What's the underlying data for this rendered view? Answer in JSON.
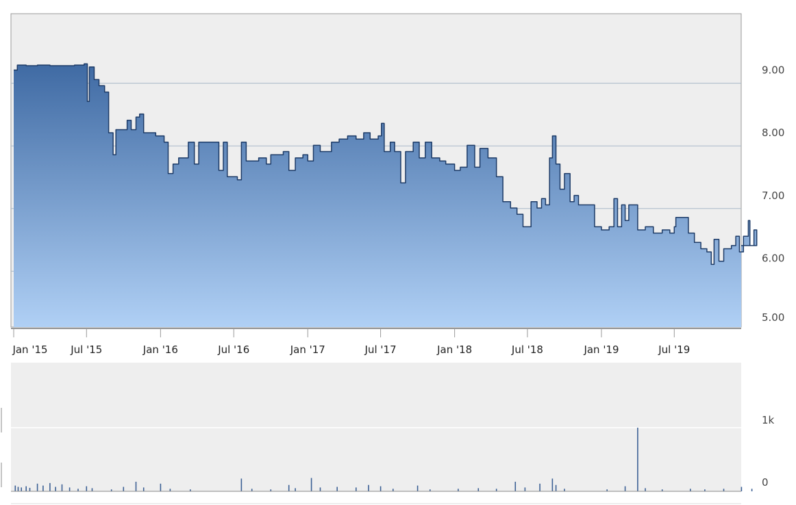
{
  "chart_data": [
    {
      "type": "area",
      "title": "",
      "xlabel": "",
      "ylabel": "",
      "ylim": [
        5.0,
        10.0
      ],
      "y_ticks": [
        "5.00",
        "6.00",
        "7.00",
        "8.00",
        "9.00"
      ],
      "x_ticks": [
        "Jan '15",
        "Jul '15",
        "Jan '16",
        "Jul '16",
        "Jan '17",
        "Jul '17",
        "Jan '18",
        "Jul '18",
        "Jan '19",
        "Jul '19"
      ],
      "grid": true,
      "colors": {
        "line": "#1c3a66",
        "fill_top": "#3f6aa3",
        "fill_bottom": "#b0d0f5",
        "background": "#eeeeee"
      },
      "points": [
        [
          "2015-01-01",
          9.1
        ],
        [
          "2015-01-10",
          9.18
        ],
        [
          "2015-02-01",
          9.17
        ],
        [
          "2015-03-01",
          9.18
        ],
        [
          "2015-04-01",
          9.17
        ],
        [
          "2015-05-01",
          9.17
        ],
        [
          "2015-06-01",
          9.18
        ],
        [
          "2015-06-25",
          9.2
        ],
        [
          "2015-07-03",
          8.6
        ],
        [
          "2015-07-08",
          9.15
        ],
        [
          "2015-07-20",
          8.95
        ],
        [
          "2015-08-01",
          8.85
        ],
        [
          "2015-08-15",
          8.75
        ],
        [
          "2015-08-25",
          8.1
        ],
        [
          "2015-09-05",
          7.75
        ],
        [
          "2015-09-12",
          8.15
        ],
        [
          "2015-10-01",
          8.15
        ],
        [
          "2015-10-10",
          8.3
        ],
        [
          "2015-10-20",
          8.15
        ],
        [
          "2015-11-01",
          8.35
        ],
        [
          "2015-11-10",
          8.4
        ],
        [
          "2015-11-20",
          8.1
        ],
        [
          "2015-12-01",
          8.1
        ],
        [
          "2015-12-20",
          8.05
        ],
        [
          "2016-01-01",
          8.05
        ],
        [
          "2016-01-10",
          7.95
        ],
        [
          "2016-01-20",
          7.45
        ],
        [
          "2016-02-01",
          7.6
        ],
        [
          "2016-02-15",
          7.7
        ],
        [
          "2016-03-01",
          7.7
        ],
        [
          "2016-03-10",
          7.95
        ],
        [
          "2016-03-25",
          7.6
        ],
        [
          "2016-04-05",
          7.95
        ],
        [
          "2016-05-01",
          7.95
        ],
        [
          "2016-05-15",
          7.95
        ],
        [
          "2016-05-25",
          7.5
        ],
        [
          "2016-06-05",
          7.95
        ],
        [
          "2016-06-15",
          7.4
        ],
        [
          "2016-07-01",
          7.4
        ],
        [
          "2016-07-10",
          7.35
        ],
        [
          "2016-07-20",
          7.95
        ],
        [
          "2016-08-01",
          7.65
        ],
        [
          "2016-09-01",
          7.7
        ],
        [
          "2016-09-20",
          7.6
        ],
        [
          "2016-10-01",
          7.75
        ],
        [
          "2016-11-01",
          7.8
        ],
        [
          "2016-11-15",
          7.5
        ],
        [
          "2016-12-01",
          7.7
        ],
        [
          "2016-12-20",
          7.75
        ],
        [
          "2017-01-01",
          7.65
        ],
        [
          "2017-01-15",
          7.9
        ],
        [
          "2017-02-01",
          7.8
        ],
        [
          "2017-03-01",
          7.95
        ],
        [
          "2017-03-20",
          8.0
        ],
        [
          "2017-04-10",
          8.05
        ],
        [
          "2017-05-01",
          8.0
        ],
        [
          "2017-05-20",
          8.1
        ],
        [
          "2017-06-05",
          8.0
        ],
        [
          "2017-06-25",
          8.05
        ],
        [
          "2017-07-03",
          8.25
        ],
        [
          "2017-07-10",
          7.8
        ],
        [
          "2017-07-25",
          7.95
        ],
        [
          "2017-08-05",
          7.8
        ],
        [
          "2017-08-20",
          7.3
        ],
        [
          "2017-09-01",
          7.8
        ],
        [
          "2017-09-20",
          7.95
        ],
        [
          "2017-10-05",
          7.7
        ],
        [
          "2017-10-20",
          7.95
        ],
        [
          "2017-11-05",
          7.7
        ],
        [
          "2017-11-25",
          7.65
        ],
        [
          "2017-12-10",
          7.6
        ],
        [
          "2018-01-01",
          7.5
        ],
        [
          "2018-01-15",
          7.55
        ],
        [
          "2018-02-01",
          7.9
        ],
        [
          "2018-02-20",
          7.55
        ],
        [
          "2018-03-05",
          7.85
        ],
        [
          "2018-03-25",
          7.7
        ],
        [
          "2018-04-15",
          7.4
        ],
        [
          "2018-05-01",
          7.0
        ],
        [
          "2018-05-20",
          6.9
        ],
        [
          "2018-06-05",
          6.8
        ],
        [
          "2018-06-20",
          6.6
        ],
        [
          "2018-07-01",
          6.6
        ],
        [
          "2018-07-10",
          7.0
        ],
        [
          "2018-07-25",
          6.9
        ],
        [
          "2018-08-05",
          7.05
        ],
        [
          "2018-08-15",
          6.95
        ],
        [
          "2018-08-25",
          7.7
        ],
        [
          "2018-09-01",
          8.05
        ],
        [
          "2018-09-10",
          7.6
        ],
        [
          "2018-09-20",
          7.2
        ],
        [
          "2018-10-01",
          7.45
        ],
        [
          "2018-10-15",
          7.0
        ],
        [
          "2018-10-25",
          7.1
        ],
        [
          "2018-11-05",
          6.95
        ],
        [
          "2018-12-01",
          6.95
        ],
        [
          "2018-12-15",
          6.6
        ],
        [
          "2019-01-01",
          6.55
        ],
        [
          "2019-01-20",
          6.6
        ],
        [
          "2019-02-01",
          7.05
        ],
        [
          "2019-02-10",
          6.6
        ],
        [
          "2019-02-20",
          6.95
        ],
        [
          "2019-03-01",
          6.7
        ],
        [
          "2019-03-10",
          6.95
        ],
        [
          "2019-03-20",
          6.95
        ],
        [
          "2019-04-01",
          6.55
        ],
        [
          "2019-04-20",
          6.6
        ],
        [
          "2019-05-10",
          6.5
        ],
        [
          "2019-06-01",
          6.55
        ],
        [
          "2019-06-20",
          6.5
        ],
        [
          "2019-07-01",
          6.6
        ],
        [
          "2019-07-05",
          6.75
        ],
        [
          "2019-07-25",
          6.75
        ],
        [
          "2019-08-05",
          6.5
        ],
        [
          "2019-08-20",
          6.35
        ],
        [
          "2019-09-05",
          6.25
        ],
        [
          "2019-09-20",
          6.2
        ],
        [
          "2019-10-01",
          6.0
        ],
        [
          "2019-10-08",
          6.4
        ],
        [
          "2019-10-20",
          6.05
        ],
        [
          "2019-11-01",
          6.25
        ],
        [
          "2019-11-20",
          6.3
        ],
        [
          "2019-12-01",
          6.45
        ],
        [
          "2019-12-10",
          6.2
        ],
        [
          "2019-12-20",
          6.45
        ],
        [
          "2020-01-01",
          6.7
        ],
        [
          "2020-01-05",
          6.3
        ],
        [
          "2020-01-15",
          6.55
        ],
        [
          "2020-01-22",
          6.3
        ]
      ]
    },
    {
      "type": "bar",
      "title": "",
      "xlabel": "",
      "ylabel": "",
      "ylim": [
        0,
        2000
      ],
      "y_ticks": [
        "0",
        "1k"
      ],
      "grid": true,
      "colors": {
        "bar": "#3a5f94"
      },
      "volumes": [
        [
          "2015-01-05",
          90
        ],
        [
          "2015-01-12",
          70
        ],
        [
          "2015-01-20",
          60
        ],
        [
          "2015-02-01",
          80
        ],
        [
          "2015-02-10",
          55
        ],
        [
          "2015-03-01",
          120
        ],
        [
          "2015-03-15",
          90
        ],
        [
          "2015-04-01",
          130
        ],
        [
          "2015-04-15",
          70
        ],
        [
          "2015-05-01",
          110
        ],
        [
          "2015-05-20",
          60
        ],
        [
          "2015-06-10",
          40
        ],
        [
          "2015-07-01",
          80
        ],
        [
          "2015-07-15",
          50
        ],
        [
          "2015-09-01",
          30
        ],
        [
          "2015-10-01",
          70
        ],
        [
          "2015-11-01",
          150
        ],
        [
          "2015-11-20",
          60
        ],
        [
          "2016-01-01",
          120
        ],
        [
          "2016-01-25",
          40
        ],
        [
          "2016-03-15",
          30
        ],
        [
          "2016-07-20",
          200
        ],
        [
          "2016-08-15",
          40
        ],
        [
          "2016-10-01",
          30
        ],
        [
          "2016-11-15",
          100
        ],
        [
          "2016-12-01",
          50
        ],
        [
          "2017-01-10",
          210
        ],
        [
          "2017-02-01",
          60
        ],
        [
          "2017-03-15",
          70
        ],
        [
          "2017-05-01",
          60
        ],
        [
          "2017-06-01",
          100
        ],
        [
          "2017-07-01",
          80
        ],
        [
          "2017-08-01",
          40
        ],
        [
          "2017-10-01",
          90
        ],
        [
          "2017-11-01",
          30
        ],
        [
          "2018-01-10",
          40
        ],
        [
          "2018-03-01",
          50
        ],
        [
          "2018-04-15",
          40
        ],
        [
          "2018-06-01",
          150
        ],
        [
          "2018-06-25",
          60
        ],
        [
          "2018-08-01",
          120
        ],
        [
          "2018-09-01",
          200
        ],
        [
          "2018-09-10",
          100
        ],
        [
          "2018-10-01",
          40
        ],
        [
          "2019-01-15",
          30
        ],
        [
          "2019-03-01",
          80
        ],
        [
          "2019-04-01",
          1000
        ],
        [
          "2019-04-20",
          50
        ],
        [
          "2019-06-01",
          30
        ],
        [
          "2019-08-10",
          40
        ],
        [
          "2019-09-15",
          30
        ],
        [
          "2019-11-01",
          40
        ],
        [
          "2019-12-15",
          70
        ],
        [
          "2020-01-10",
          40
        ]
      ]
    }
  ]
}
